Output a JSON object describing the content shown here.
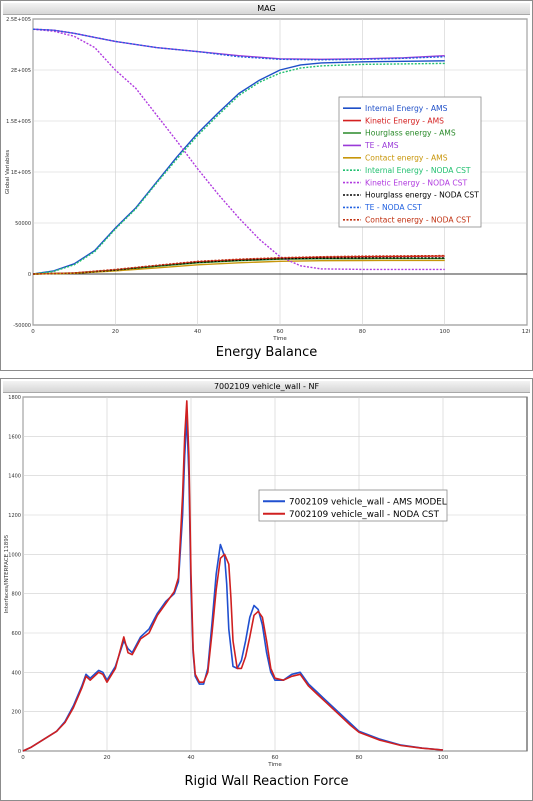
{
  "panels": [
    {
      "window_title": "MAG",
      "caption": "Energy Balance"
    },
    {
      "window_title": "7002109 vehicle_wall - NF",
      "caption": "Rigid Wall Reaction Force"
    }
  ],
  "chart_data": [
    {
      "type": "line",
      "title": "MAG",
      "xlabel": "Time",
      "ylabel": "Global Variables",
      "xlim": [
        0,
        120
      ],
      "ylim": [
        -50000,
        250000
      ],
      "xticks": [
        0,
        20,
        40,
        60,
        80,
        100,
        120
      ],
      "yticks": [
        -50000,
        0,
        50000,
        100000,
        150000,
        200000,
        250000
      ],
      "ytick_labels": [
        "-50000",
        "0",
        "50000",
        "1E+005",
        "1.5E+005",
        "2E+005",
        "2.5E+005"
      ],
      "grid": true,
      "legend_position": "right",
      "series": [
        {
          "name": "Internal Energy - AMS",
          "color": "#1f4fc8",
          "dashed": false,
          "x": [
            0,
            5,
            10,
            15,
            20,
            25,
            30,
            35,
            40,
            45,
            50,
            55,
            60,
            65,
            70,
            80,
            90,
            100
          ],
          "y": [
            0,
            3000,
            10000,
            23000,
            45000,
            65000,
            90000,
            115000,
            138000,
            158000,
            177000,
            190000,
            200000,
            205000,
            207000,
            208000,
            208500,
            209000
          ]
        },
        {
          "name": "Kinetic Energy - AMS",
          "color": "#d42020",
          "dashed": false,
          "x": [
            0,
            10,
            20,
            30,
            40,
            50,
            60,
            70,
            80,
            90,
            100
          ],
          "y": [
            0,
            1000,
            4000,
            8000,
            12000,
            14000,
            15500,
            16500,
            17000,
            17300,
            17500
          ]
        },
        {
          "name": "Hourglass energy - AMS",
          "color": "#2a8a2a",
          "dashed": false,
          "x": [
            0,
            10,
            20,
            30,
            40,
            50,
            60,
            70,
            80,
            90,
            100
          ],
          "y": [
            0,
            800,
            3500,
            7500,
            11000,
            13000,
            14500,
            15000,
            15200,
            15300,
            15300
          ]
        },
        {
          "name": "TE - AMS",
          "color": "#9a3ad8",
          "dashed": false,
          "x": [
            0,
            5,
            10,
            15,
            20,
            30,
            40,
            50,
            60,
            70,
            80,
            90,
            100
          ],
          "y": [
            240000,
            239000,
            236000,
            232000,
            228000,
            222000,
            218000,
            214000,
            211000,
            210500,
            211000,
            212000,
            214000
          ]
        },
        {
          "name": "Contact energy - AMS",
          "color": "#c8960a",
          "dashed": false,
          "x": [
            0,
            10,
            20,
            30,
            40,
            50,
            60,
            70,
            80,
            90,
            100
          ],
          "y": [
            0,
            700,
            3000,
            6000,
            9000,
            11000,
            12500,
            13000,
            13200,
            13300,
            13300
          ]
        },
        {
          "name": "Internal Energy - NODA CST",
          "color": "#22c070",
          "dashed": true,
          "x": [
            0,
            5,
            10,
            15,
            20,
            25,
            30,
            35,
            40,
            45,
            50,
            55,
            60,
            65,
            70,
            80,
            90,
            100
          ],
          "y": [
            0,
            2500,
            9000,
            22000,
            44000,
            64000,
            89000,
            113000,
            136000,
            156000,
            175000,
            188000,
            197000,
            202000,
            204000,
            205500,
            206000,
            206500
          ]
        },
        {
          "name": "Kinetic Energy - NODA CST",
          "color": "#b03adf",
          "dashed": true,
          "x": [
            0,
            5,
            10,
            15,
            20,
            25,
            30,
            35,
            40,
            45,
            50,
            55,
            60,
            65,
            70,
            80,
            90,
            100
          ],
          "y": [
            240000,
            238000,
            233000,
            222000,
            200000,
            182000,
            156000,
            130000,
            103000,
            78000,
            55000,
            34000,
            17000,
            8000,
            5000,
            4500,
            4500,
            4500
          ]
        },
        {
          "name": "Hourglass energy - NODA CST",
          "color": "#000000",
          "dashed": true,
          "x": [
            0,
            10,
            20,
            30,
            40,
            50,
            60,
            70,
            80,
            90,
            100
          ],
          "y": [
            0,
            900,
            3800,
            8000,
            11500,
            13500,
            15000,
            15500,
            15700,
            15800,
            15800
          ]
        },
        {
          "name": "TE - NODA CST",
          "color": "#2060e0",
          "dashed": true,
          "x": [
            0,
            5,
            10,
            15,
            20,
            30,
            40,
            50,
            60,
            70,
            80,
            90,
            100
          ],
          "y": [
            240000,
            239000,
            236000,
            232000,
            228000,
            222000,
            218000,
            213000,
            210500,
            210000,
            210500,
            211500,
            213000
          ]
        },
        {
          "name": "Contact energy - NODA CST",
          "color": "#c03010",
          "dashed": true,
          "x": [
            0,
            10,
            20,
            30,
            40,
            50,
            60,
            70,
            80,
            90,
            100
          ],
          "y": [
            0,
            1100,
            4500,
            8500,
            12500,
            14500,
            16000,
            17000,
            17500,
            17800,
            18000
          ]
        }
      ]
    },
    {
      "type": "line",
      "title": "7002109 vehicle_wall - NF",
      "xlabel": "Time",
      "ylabel": "Interfaces/INTERFACE 11895",
      "xlim": [
        0,
        120
      ],
      "ylim": [
        0,
        1800
      ],
      "xticks": [
        0,
        20,
        40,
        60,
        80,
        100
      ],
      "yticks": [
        0,
        200,
        400,
        600,
        800,
        1000,
        1200,
        1400,
        1600,
        1800
      ],
      "grid": true,
      "legend_position": "center",
      "series": [
        {
          "name": "7002109 vehicle_wall - AMS MODEL",
          "color": "#2050d0",
          "dashed": false,
          "x": [
            0,
            2,
            5,
            8,
            10,
            12,
            14,
            15,
            16,
            18,
            19,
            20,
            22,
            24,
            25,
            26,
            28,
            30,
            32,
            34,
            36,
            37,
            38,
            38.5,
            39,
            39.5,
            40,
            40.5,
            41,
            42,
            43,
            44,
            45,
            46,
            47,
            48,
            48.5,
            49,
            50,
            51,
            52,
            53,
            54,
            55,
            56,
            57,
            58,
            59,
            60,
            62,
            64,
            66,
            68,
            70,
            72,
            75,
            78,
            80,
            85,
            90,
            95,
            100
          ],
          "y": [
            0,
            20,
            60,
            100,
            150,
            230,
            330,
            390,
            370,
            410,
            400,
            360,
            430,
            560,
            520,
            500,
            580,
            620,
            700,
            760,
            800,
            860,
            1200,
            1500,
            1700,
            1400,
            820,
            500,
            380,
            340,
            340,
            420,
            650,
            900,
            1050,
            990,
            850,
            620,
            430,
            420,
            460,
            560,
            680,
            740,
            720,
            640,
            500,
            400,
            360,
            360,
            390,
            400,
            340,
            300,
            260,
            200,
            140,
            100,
            60,
            30,
            15,
            5
          ]
        },
        {
          "name": "7002109 vehicle_wall - NODA CST",
          "color": "#d02020",
          "dashed": false,
          "x": [
            0,
            2,
            5,
            8,
            10,
            12,
            14,
            15,
            16,
            18,
            19,
            20,
            22,
            24,
            25,
            26,
            28,
            30,
            32,
            34,
            36,
            37,
            38,
            38.5,
            39,
            39.5,
            40,
            40.5,
            41,
            42,
            43,
            44,
            45,
            46,
            47,
            48,
            49,
            49.5,
            50,
            51,
            52,
            53,
            54,
            55,
            56,
            57,
            58,
            59,
            60,
            62,
            64,
            66,
            68,
            70,
            72,
            75,
            78,
            80,
            85,
            90,
            95,
            100
          ],
          "y": [
            0,
            20,
            60,
            100,
            145,
            220,
            320,
            380,
            360,
            400,
            390,
            350,
            420,
            580,
            500,
            490,
            570,
            600,
            690,
            750,
            810,
            880,
            1300,
            1600,
            1780,
            1500,
            900,
            520,
            390,
            350,
            350,
            400,
            600,
            820,
            980,
            1000,
            950,
            780,
            560,
            420,
            420,
            480,
            580,
            690,
            710,
            680,
            560,
            420,
            370,
            360,
            380,
            390,
            330,
            290,
            250,
            190,
            130,
            95,
            55,
            28,
            14,
            5
          ]
        }
      ]
    }
  ]
}
